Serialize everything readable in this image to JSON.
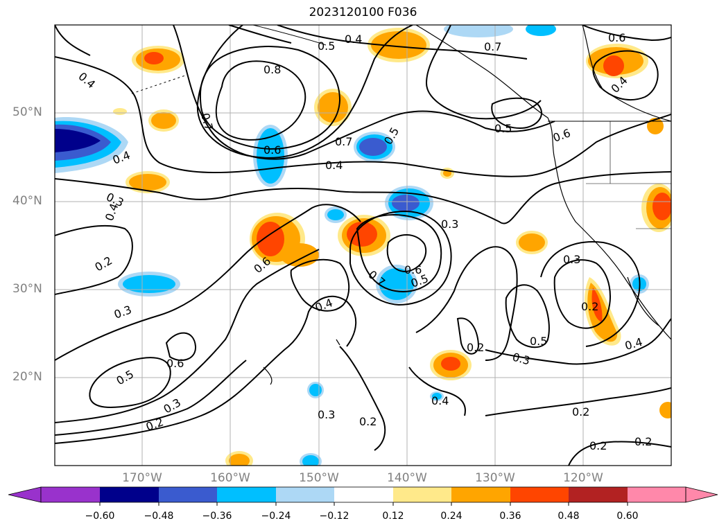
{
  "title": "2023120100 F036",
  "lat_labels": [
    "50°N",
    "40°N",
    "30°N",
    "20°N"
  ],
  "lon_labels": [
    "170°W",
    "160°W",
    "150°W",
    "140°W",
    "130°W",
    "120°W"
  ],
  "contour_labels": [
    "0.4",
    "0.5",
    "0.8",
    "0.7",
    "0.4",
    "0.7",
    "0.6",
    "0.5",
    "0.7",
    "0.6",
    "0.5",
    "0.6",
    "0.4",
    "0.4",
    "0.3",
    "0.4",
    "0.3",
    "0.2",
    "0.4",
    "0.3",
    "0.6",
    "0.7",
    "0.6",
    "0.5",
    "0.4",
    "0.3",
    "0.2",
    "0.5",
    "0.3",
    "0.2",
    "0.5",
    "0.6",
    "0.3",
    "0.2",
    "0.3",
    "0.2",
    "0.4",
    "0.2",
    "0.2",
    "0.2",
    "0.4"
  ],
  "colorbar": {
    "ticks": [
      "−0.60",
      "−0.48",
      "−0.36",
      "−0.24",
      "−0.12",
      "0.12",
      "0.24",
      "0.36",
      "0.48",
      "0.60"
    ],
    "colors": [
      "#9932cc",
      "#00008b",
      "#3a5bcf",
      "#00bfff",
      "#add8f5",
      "#ffffff",
      "#ffe98a",
      "#ffa500",
      "#ff4500",
      "#b22222",
      "#ff88aa"
    ]
  }
}
